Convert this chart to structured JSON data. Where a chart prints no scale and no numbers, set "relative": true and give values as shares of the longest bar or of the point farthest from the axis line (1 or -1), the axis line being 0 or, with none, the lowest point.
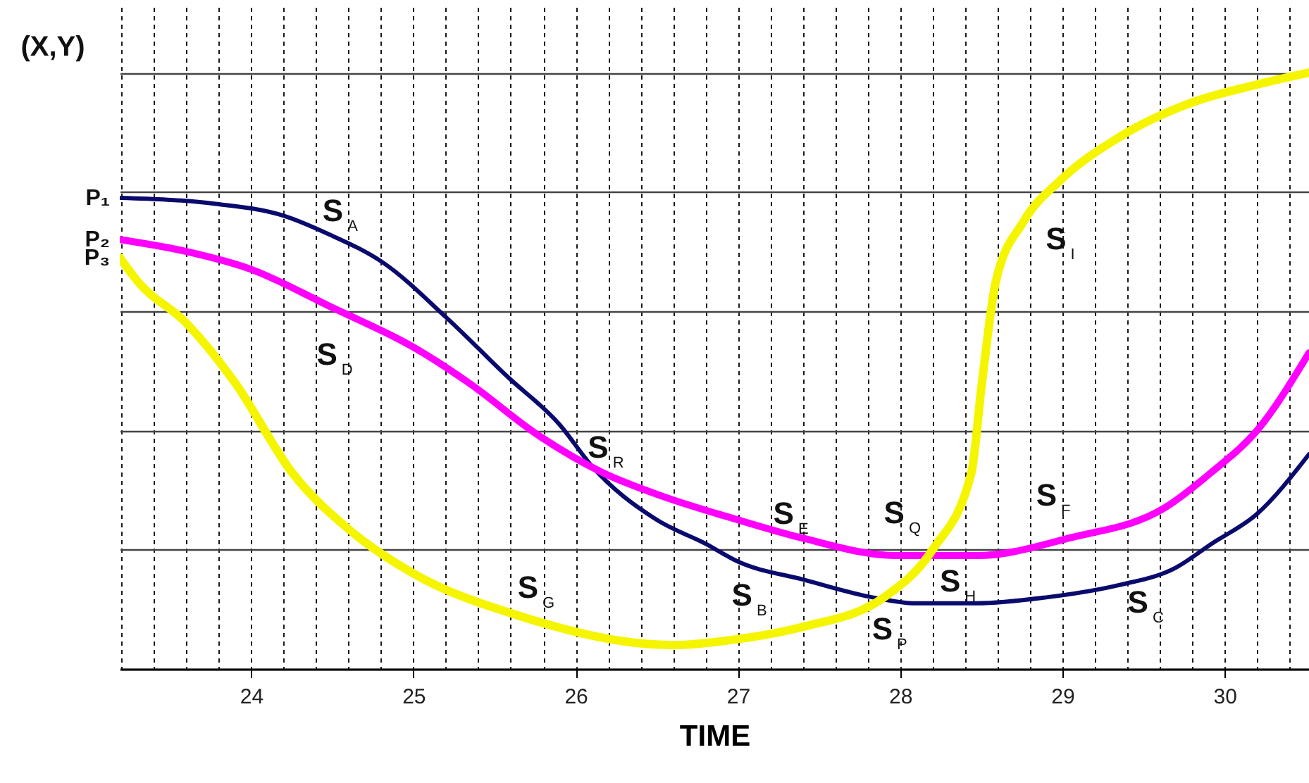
{
  "chart_data": {
    "type": "line",
    "relative": true,
    "xlabel": "TIME",
    "ylabel": "(X,Y)",
    "grid": true,
    "xlim": [
      23.19,
      30.52
    ],
    "xticks": [
      {
        "value": 23.2,
        "label": null
      },
      {
        "value": 23.4,
        "label": null
      },
      {
        "value": 23.6,
        "label": null
      },
      {
        "value": 23.8,
        "label": null
      },
      24,
      {
        "value": 24.2,
        "label": null
      },
      {
        "value": 24.4,
        "label": null
      },
      {
        "value": 24.6,
        "label": null
      },
      {
        "value": 24.8,
        "label": null
      },
      25,
      {
        "value": 25.2,
        "label": null
      },
      {
        "value": 25.4,
        "label": null
      },
      {
        "value": 25.6,
        "label": null
      },
      {
        "value": 25.8,
        "label": null
      },
      26,
      {
        "value": 26.2,
        "label": null
      },
      {
        "value": 26.4,
        "label": null
      },
      {
        "value": 26.6,
        "label": null
      },
      {
        "value": 26.8,
        "label": null
      },
      27,
      {
        "value": 27.2,
        "label": null
      },
      {
        "value": 27.4,
        "label": null
      },
      {
        "value": 27.6,
        "label": null
      },
      {
        "value": 27.8,
        "label": null
      },
      28,
      {
        "value": 28.2,
        "label": null
      },
      {
        "value": 28.4,
        "label": null
      },
      {
        "value": 28.6,
        "label": null
      },
      {
        "value": 28.8,
        "label": null
      },
      29,
      {
        "value": 29.2,
        "label": null
      },
      {
        "value": 29.4,
        "label": null
      },
      {
        "value": 29.6,
        "label": null
      },
      {
        "value": 29.8,
        "label": null
      },
      30,
      {
        "value": 30.2,
        "label": null
      },
      {
        "value": 30.4,
        "label": null
      }
    ],
    "series": [
      {
        "name": "P₁",
        "color": "#0a0a6e",
        "x": [
          23.19,
          23.78,
          24.2,
          24.47,
          24.82,
          25.2,
          25.58,
          25.9,
          26.1,
          26.5,
          26.8,
          27,
          27.4,
          27.83,
          28.1,
          28.47,
          28.9,
          29.34,
          29.7,
          29.92,
          30.2,
          30.52
        ],
        "values": [
          0.79,
          0.78,
          0.76,
          0.73,
          0.68,
          0.59,
          0.49,
          0.41,
          0.34,
          0.25,
          0.21,
          0.18,
          0.15,
          0.12,
          0.11,
          0.11,
          0.12,
          0.14,
          0.17,
          0.21,
          0.26,
          0.36
        ]
      },
      {
        "name": "P₂",
        "color": "#ff00ff",
        "x": [
          23.19,
          23.6,
          24,
          24.47,
          25.06,
          25.34,
          25.78,
          26.16,
          26.53,
          27,
          27.39,
          27.98,
          28.47,
          29.05,
          29.63,
          29.92,
          30.2,
          30.52
        ],
        "values": [
          0.72,
          0.7,
          0.67,
          0.61,
          0.53,
          0.48,
          0.39,
          0.33,
          0.29,
          0.25,
          0.22,
          0.19,
          0.19,
          0.22,
          0.27,
          0.33,
          0.4,
          0.53
        ]
      },
      {
        "name": "P₃",
        "color": "#f5f500",
        "x": [
          23.19,
          23.3,
          23.6,
          23.9,
          24.25,
          24.62,
          25,
          25.64,
          26.6,
          27,
          27.39,
          27.9,
          28.2,
          28.44,
          28.5,
          28.59,
          28.76,
          28.99,
          29.34,
          29.8,
          30.2,
          30.52
        ],
        "values": [
          0.69,
          0.65,
          0.58,
          0.48,
          0.33,
          0.23,
          0.16,
          0.09,
          0.04,
          0.05,
          0.07,
          0.12,
          0.2,
          0.33,
          0.47,
          0.65,
          0.75,
          0.82,
          0.89,
          0.95,
          0.98,
          1
        ]
      }
    ],
    "annotations": [
      "S$_{A}$",
      "S$_{D}$",
      "S$_{R}$",
      "S$_{E}$",
      "S$_{Q}$",
      "S$_{F}$",
      "S$_{I}$",
      "S$_{B}$",
      "S$_{H}$",
      "S$_{C}$",
      "S$_{G}$",
      "S$_{P}$"
    ]
  }
}
